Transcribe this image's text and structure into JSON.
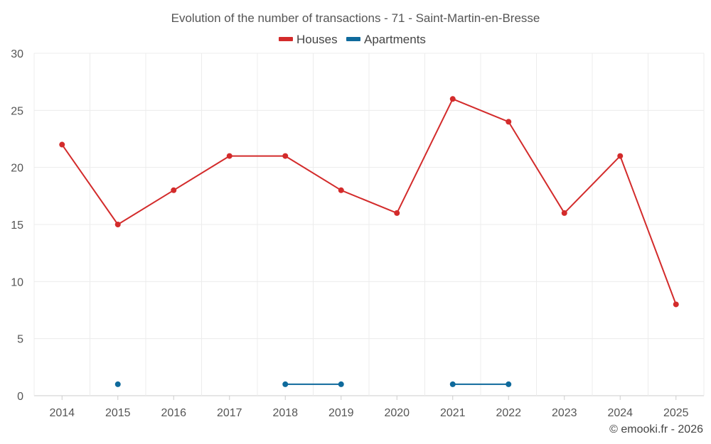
{
  "chart_data": {
    "type": "line",
    "title": "Evolution of the number of transactions - 71 - Saint-Martin-en-Bresse",
    "categories": [
      "2014",
      "2015",
      "2016",
      "2017",
      "2018",
      "2019",
      "2020",
      "2021",
      "2022",
      "2023",
      "2024",
      "2025"
    ],
    "ylim": [
      0,
      30
    ],
    "yticks": [
      0,
      5,
      10,
      15,
      20,
      25,
      30
    ],
    "grid": true,
    "legend_position": "top-center",
    "xlabel": "",
    "ylabel": "",
    "series": [
      {
        "name": "Houses",
        "color": "#d32b2b",
        "values": [
          22,
          15,
          18,
          21,
          21,
          18,
          16,
          26,
          24,
          16,
          21,
          8
        ]
      },
      {
        "name": "Apartments",
        "color": "#0f6a9c",
        "values": [
          null,
          1,
          null,
          null,
          1,
          1,
          null,
          1,
          1,
          null,
          null,
          null
        ]
      }
    ]
  },
  "credit": "© emooki.fr - 2026"
}
